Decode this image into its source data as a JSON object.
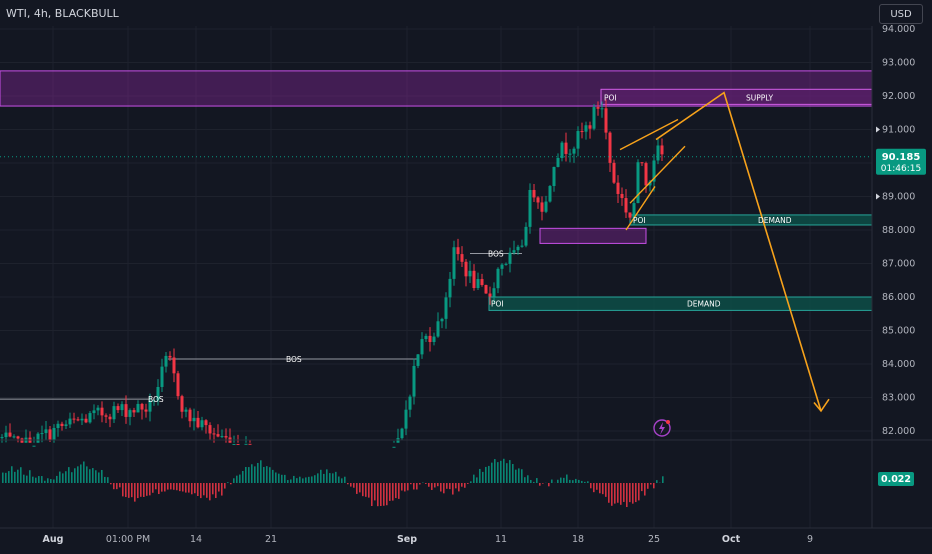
{
  "header": {
    "title": "WTI, 4h, BLACKBULL"
  },
  "currency_button": {
    "label": "USD"
  },
  "price_badge": {
    "price": "90.185",
    "countdown": "01:46:15",
    "color": "#089981"
  },
  "osc_badge": {
    "value": "0.022",
    "color": "#089981"
  },
  "colors": {
    "background": "#131722",
    "bull": "#089981",
    "bear": "#f23645",
    "zone_purple": "#9c27b0",
    "zone_teal": "#00897b",
    "projection": "#f7a21b"
  },
  "annotations": {
    "supply_label": "SUPPLY",
    "demand_upper_label": "DEMAND",
    "demand_lower_label": "DEMAND",
    "poi_top": "POI",
    "poi_mid": "POI",
    "poi_low": "POI",
    "bos_1": "BOS",
    "bos_2": "BOS",
    "bos_3": "BOS"
  },
  "chart_data": {
    "type": "candlestick",
    "symbol": "WTI",
    "interval": "4h",
    "broker": "BLACKBULL",
    "currency": "USD",
    "y_ticks": [
      "94.000",
      "93.000",
      "92.000",
      "91.000",
      "90.000",
      "89.000",
      "88.000",
      "87.000",
      "86.000",
      "85.000",
      "84.000",
      "83.000",
      "82.000"
    ],
    "y_range": [
      81.7,
      94.3
    ],
    "x_ticks": [
      "Aug",
      "01:00 PM",
      "14",
      "21",
      "Sep",
      "11",
      "18",
      "25",
      "Oct",
      "9"
    ],
    "last_price": 90.185,
    "oscillator_last": 0.022,
    "zones": [
      {
        "kind": "supply",
        "low": 91.7,
        "high": 92.8,
        "label": "SUPPLY"
      },
      {
        "kind": "demand",
        "low": 88.2,
        "high": 88.5,
        "label": "DEMAND"
      },
      {
        "kind": "demand",
        "low": 85.6,
        "high": 86.0,
        "label": "DEMAND"
      }
    ],
    "projection_path": [
      91.1,
      92.1,
      88.0,
      82.6
    ]
  }
}
